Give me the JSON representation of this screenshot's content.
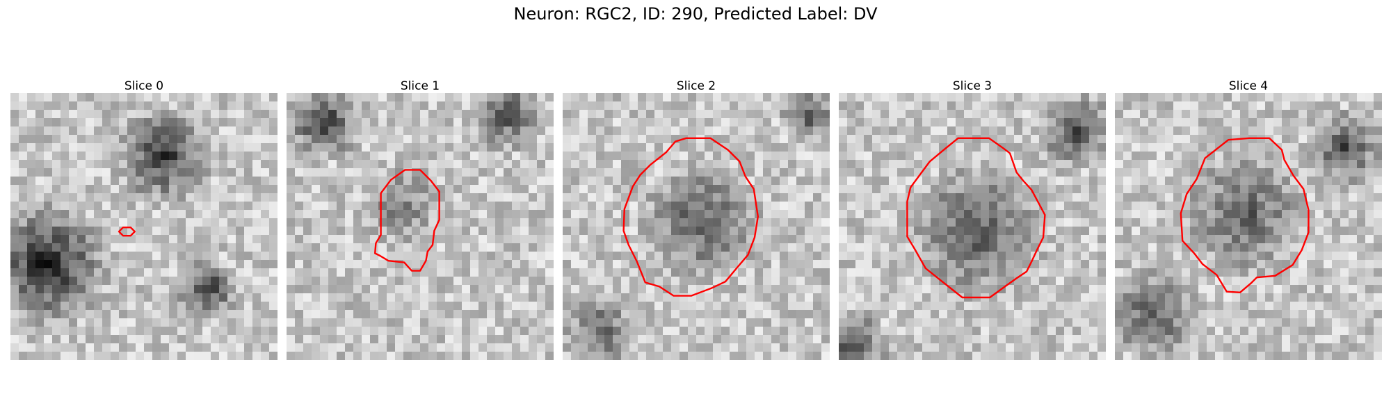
{
  "figure": {
    "title": "Neuron: RGC2, ID: 290, Predicted Label: DV",
    "panels": [
      {
        "label": "Slice 0",
        "contour": "tiny",
        "contour_color": "#ff0000",
        "colormap": "grayscale",
        "blob_brightness": [
          0.55,
          0.65,
          0.58
        ]
      },
      {
        "label": "Slice 1",
        "contour": "irregular",
        "contour_color": "#ff0000",
        "colormap": "grayscale",
        "blob_brightness": [
          0.3,
          0.55,
          0.45
        ]
      },
      {
        "label": "Slice 2",
        "contour": "round",
        "contour_color": "#ff0000",
        "colormap": "grayscale",
        "blob_brightness": [
          0.42,
          0.4,
          0.45
        ]
      },
      {
        "label": "Slice 3",
        "contour": "large",
        "contour_color": "#ff0000",
        "colormap": "grayscale",
        "blob_brightness": [
          0.45,
          0.5,
          0.5
        ]
      },
      {
        "label": "Slice 4",
        "contour": "round",
        "contour_color": "#ff0000",
        "colormap": "grayscale",
        "blob_brightness": [
          0.42,
          0.45,
          0.5
        ]
      }
    ]
  }
}
